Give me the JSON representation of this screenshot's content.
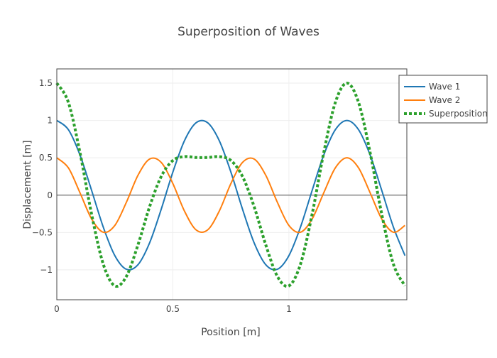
{
  "chart_data": {
    "type": "line",
    "title": "Superposition of Waves",
    "xlabel": "Position [m]",
    "ylabel": "Displacement [m]",
    "xlim": [
      0,
      1.508
    ],
    "ylim": [
      -1.4,
      1.69
    ],
    "xticks": [
      0,
      0.5,
      1
    ],
    "xtick_labels": [
      "0",
      "0.5",
      "1"
    ],
    "yticks": [
      1.5,
      1,
      0.5,
      0,
      -0.5,
      -1
    ],
    "ytick_labels": [
      "1.5",
      "1",
      "0.5",
      "0",
      "−0.5",
      "−1"
    ],
    "grid": true,
    "legend_position": "top-right-outside",
    "x": [
      0,
      0.05,
      0.1,
      0.15,
      0.2,
      0.25,
      0.3,
      0.35,
      0.4,
      0.45,
      0.5,
      0.55,
      0.6,
      0.65,
      0.7,
      0.75,
      0.8,
      0.85,
      0.9,
      0.95,
      1.0,
      1.05,
      1.1,
      1.15,
      1.2,
      1.25,
      1.3,
      1.35,
      1.4,
      1.45,
      1.5
    ],
    "series": [
      {
        "name": "Wave 1",
        "color": "#1f77b4",
        "dash": "solid",
        "values": [
          1,
          0.876,
          0.536,
          0.063,
          -0.426,
          -0.809,
          -0.992,
          -0.93,
          -0.637,
          -0.187,
          0.309,
          0.729,
          0.969,
          0.969,
          0.729,
          0.309,
          -0.187,
          -0.637,
          -0.93,
          -0.992,
          -0.809,
          -0.426,
          0.063,
          0.536,
          0.876,
          1,
          0.876,
          0.536,
          0.063,
          -0.426,
          -0.809
        ]
      },
      {
        "name": "Wave 2",
        "color": "#ff7f0e",
        "dash": "solid",
        "values": [
          0.5,
          0.365,
          0.031,
          -0.319,
          -0.496,
          -0.405,
          -0.094,
          0.268,
          0.484,
          0.438,
          0.155,
          -0.213,
          -0.465,
          -0.465,
          -0.213,
          0.155,
          0.438,
          0.484,
          0.268,
          -0.094,
          -0.405,
          -0.496,
          -0.319,
          0.031,
          0.365,
          0.5,
          0.365,
          0.031,
          -0.319,
          -0.496,
          -0.405
        ]
      },
      {
        "name": "Superposition",
        "color": "#2ca02c",
        "dash": "dot",
        "values": [
          1.5,
          1.241,
          0.567,
          -0.256,
          -0.922,
          -1.214,
          -1.086,
          -0.662,
          -0.153,
          0.251,
          0.464,
          0.516,
          0.504,
          0.504,
          0.516,
          0.464,
          0.251,
          -0.153,
          -0.662,
          -1.086,
          -1.214,
          -0.922,
          -0.256,
          0.567,
          1.241,
          1.5,
          1.241,
          0.567,
          -0.256,
          -0.922,
          -1.214
        ]
      }
    ]
  }
}
